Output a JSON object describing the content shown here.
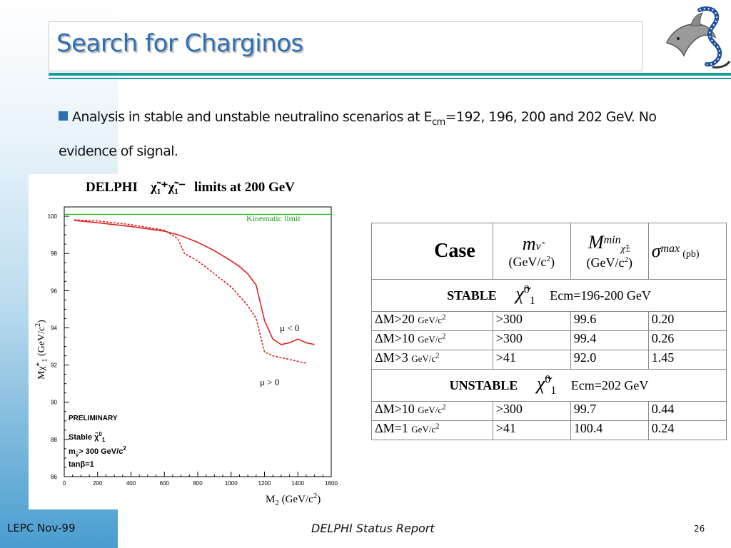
{
  "slide": {
    "title": "Search for Charginos",
    "bullet": {
      "text_before_sub": "Analysis in stable and unstable neutralino scenarios at E",
      "sub": "cm",
      "text_after_sub": "=192, 196, 200 and 202 GeV. No evidence of signal."
    }
  },
  "plot": {
    "title": "DELPHI",
    "title_suffix": "limits at 200 GeV",
    "ylabel": "M",
    "ylabel_unit": "(GeV/c",
    "xlabel": "M",
    "xlabel_sub": "2",
    "xlabel_unit": "(GeV/c",
    "kinematic_label": "Kinematic limit",
    "mu_neg_label": "μ < 0",
    "mu_pos_label": "μ > 0",
    "preliminary": "PRELIMINARY",
    "stable_label": "Stable",
    "mnu_label": "m",
    "mnu_rest": "> 300 GeV/c",
    "tanb_label": "tanβ=1"
  },
  "chart_data": {
    "type": "line",
    "title": "DELPHI χ̃₁⁺χ̃₁⁻ limits at 200 GeV",
    "xlabel": "M2 (GeV/c2)",
    "ylabel": "Mχ̃₁⁺ (GeV/c2)",
    "xlim": [
      0,
      1600
    ],
    "ylim": [
      86,
      100.5
    ],
    "x_ticks": [
      "0",
      "200",
      "400",
      "600",
      "800",
      "1000",
      "1200",
      "1400",
      "1600"
    ],
    "y_ticks": [
      "86",
      "88",
      "90",
      "92",
      "94",
      "96",
      "98",
      "100"
    ],
    "grid": false,
    "series": [
      {
        "name": "μ < 0",
        "style": "solid",
        "color": "#e02020",
        "x": [
          60,
          200,
          400,
          600,
          700,
          800,
          900,
          1000,
          1050,
          1100,
          1150,
          1200,
          1250,
          1300,
          1350,
          1400,
          1450,
          1500
        ],
        "y": [
          99.78,
          99.65,
          99.45,
          99.2,
          98.95,
          98.6,
          98.15,
          97.6,
          97.3,
          96.9,
          96.3,
          94.4,
          93.4,
          93.1,
          93.2,
          93.4,
          93.2,
          93.1
        ]
      },
      {
        "name": "μ > 0",
        "style": "dashed",
        "color": "#e02020",
        "x": [
          60,
          200,
          400,
          600,
          680,
          720,
          800,
          900,
          1000,
          1100,
          1150,
          1200,
          1250,
          1300,
          1400,
          1450
        ],
        "y": [
          99.8,
          99.75,
          99.55,
          99.25,
          98.8,
          98.0,
          97.6,
          96.9,
          96.2,
          95.2,
          94.5,
          92.7,
          92.5,
          92.4,
          92.2,
          92.1
        ]
      },
      {
        "name": "Kinematic limit",
        "style": "solid",
        "color": "#22c022",
        "x": [
          0,
          1600
        ],
        "y": [
          100.1,
          100.1
        ]
      }
    ]
  },
  "table": {
    "header_case": "Case",
    "header_m_sym": "m",
    "header_m_unit": "(GeV/c",
    "header_M_sym": "M",
    "header_M_sup": "min",
    "header_M_unit": "(GeV/c",
    "header_sigma_sym": "σ",
    "header_sigma_sup": "max",
    "header_sigma_unit": "(pb)",
    "stable_label": "STABLE",
    "stable_ecm": "Ecm=196-200 GeV",
    "unstable_label": "UNSTABLE",
    "unstable_ecm": "Ecm=202 GeV",
    "stable_rows": [
      {
        "dm": "ΔM>20",
        "unit": "GeV/c",
        "m": ">300",
        "mmin": "99.6",
        "sigma": "0.20"
      },
      {
        "dm": "ΔM>10",
        "unit": "GeV/c",
        "m": ">300",
        "mmin": "99.4",
        "sigma": "0.26"
      },
      {
        "dm": "ΔM>3",
        "unit": "GeV/c",
        "m": ">41",
        "mmin": "92.0",
        "sigma": "1.45"
      }
    ],
    "unstable_rows": [
      {
        "dm": "ΔM>10",
        "unit": "GeV/c",
        "m": ">300",
        "mmin": "99.7",
        "sigma": "0.44"
      },
      {
        "dm": "ΔM=1",
        "unit": "GeV/c",
        "m": ">41",
        "mmin": "100.4",
        "sigma": "0.24"
      }
    ]
  },
  "footer": {
    "left": "LEPC Nov-99",
    "center": "DELPHI Status Report",
    "page": "26"
  },
  "colors": {
    "title": "#2e6fb3",
    "rule": "#1a9a9a",
    "bullet": "#2e6fb3",
    "curve": "#e02020",
    "kinematic": "#22c022"
  }
}
